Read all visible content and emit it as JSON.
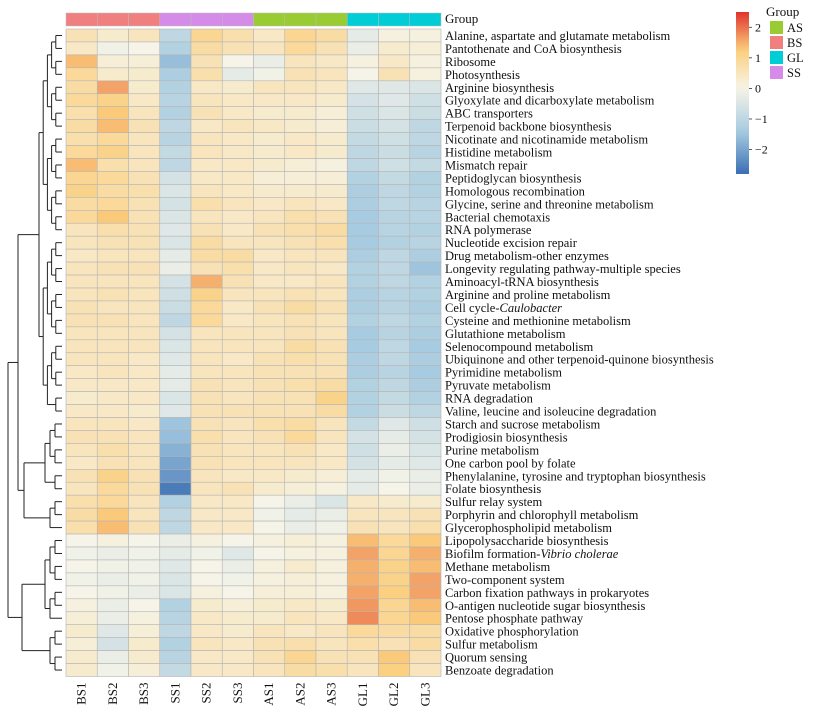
{
  "chart_data": {
    "type": "heatmap",
    "title": "",
    "annotation_label": "Group",
    "columns": [
      "BS1",
      "BS2",
      "BS3",
      "SS1",
      "SS2",
      "SS3",
      "AS1",
      "AS2",
      "AS3",
      "GL1",
      "GL2",
      "GL3"
    ],
    "column_groups": [
      "BS",
      "BS",
      "BS",
      "SS",
      "SS",
      "SS",
      "AS",
      "AS",
      "AS",
      "GL",
      "GL",
      "GL"
    ],
    "group_legend": {
      "title": "Group",
      "entries": [
        {
          "name": "AS",
          "color": "#99cc33"
        },
        {
          "name": "BS",
          "color": "#f08080"
        },
        {
          "name": "GL",
          "color": "#00cdd6"
        },
        {
          "name": "SS",
          "color": "#d58ce8"
        }
      ]
    },
    "colorbar": {
      "range": [
        -2.8,
        2.5
      ],
      "ticks": [
        2,
        1,
        0,
        -1,
        -2
      ],
      "tick_labels": [
        "2",
        "1",
        "0",
        "−1",
        "−2"
      ],
      "colors": [
        "#3a6fb3",
        "#f6f4e8",
        "#e0332d"
      ]
    },
    "rows": [
      {
        "name": "Alanine, aspartate and glutamate metabolism",
        "values": [
          0.6,
          0.3,
          0.5,
          -1.0,
          1.0,
          0.7,
          0.4,
          1.0,
          0.8,
          -0.3,
          0.1,
          0.1
        ]
      },
      {
        "name": "Pantothenate and CoA biosynthesis",
        "values": [
          0.4,
          -0.1,
          0.0,
          -1.2,
          0.8,
          0.6,
          0.5,
          0.9,
          0.6,
          -0.2,
          0.3,
          0.2
        ]
      },
      {
        "name": "Ribosome",
        "values": [
          1.4,
          0.2,
          0.2,
          -1.6,
          0.6,
          0.0,
          -0.2,
          0.5,
          0.4,
          0.1,
          0.4,
          0.1
        ]
      },
      {
        "name": "Photosynthesis",
        "values": [
          0.9,
          0.3,
          0.3,
          -1.3,
          0.7,
          -0.3,
          -0.1,
          0.6,
          0.5,
          0.0,
          0.6,
          0.1
        ]
      },
      {
        "name": "Arginine biosynthesis",
        "values": [
          0.8,
          1.6,
          0.3,
          -1.2,
          0.4,
          0.3,
          0.5,
          0.5,
          0.4,
          -0.4,
          -0.4,
          -0.5
        ]
      },
      {
        "name": "Glyoxylate and dicarboxylate metabolism",
        "values": [
          0.9,
          1.1,
          0.4,
          -1.1,
          0.5,
          0.4,
          0.4,
          0.4,
          0.3,
          -0.6,
          -0.4,
          -0.7
        ]
      },
      {
        "name": "ABC transporters",
        "values": [
          0.7,
          1.3,
          0.5,
          -1.2,
          0.6,
          0.4,
          0.3,
          0.3,
          0.2,
          -0.7,
          -0.5,
          -0.8
        ]
      },
      {
        "name": "Terpenoid backbone biosynthesis",
        "values": [
          0.8,
          1.4,
          0.6,
          -1.0,
          0.4,
          0.5,
          0.4,
          0.3,
          0.2,
          -0.8,
          -0.6,
          -1.0
        ]
      },
      {
        "name": "Nicotinate and nicotinamide metabolism",
        "values": [
          0.7,
          0.9,
          0.5,
          -1.1,
          0.5,
          0.4,
          0.3,
          0.4,
          0.3,
          -0.9,
          -0.7,
          -1.0
        ]
      },
      {
        "name": "Histidine metabolism",
        "values": [
          0.9,
          1.1,
          0.5,
          -0.9,
          0.5,
          0.4,
          0.3,
          0.4,
          0.3,
          -1.0,
          -0.8,
          -1.1
        ]
      },
      {
        "name": "Mismatch repair",
        "values": [
          1.4,
          0.7,
          0.5,
          -1.0,
          0.4,
          0.4,
          0.3,
          0.2,
          0.1,
          -1.0,
          -0.7,
          -0.9
        ]
      },
      {
        "name": "Peptidoglycan biosynthesis",
        "values": [
          1.0,
          0.9,
          0.6,
          -0.6,
          0.4,
          0.4,
          0.2,
          0.2,
          0.2,
          -1.2,
          -0.9,
          -1.2
        ]
      },
      {
        "name": "Homologous recombination",
        "values": [
          1.1,
          0.8,
          0.7,
          -0.5,
          0.5,
          0.4,
          0.3,
          0.3,
          0.3,
          -1.3,
          -1.0,
          -1.2
        ]
      },
      {
        "name": "Glycine, serine and threonine metabolism",
        "values": [
          0.8,
          0.9,
          0.6,
          -0.6,
          0.7,
          0.5,
          0.4,
          0.5,
          0.4,
          -1.3,
          -1.0,
          -1.1
        ]
      },
      {
        "name": "Bacterial chemotaxis",
        "values": [
          0.9,
          1.3,
          0.6,
          -0.5,
          0.5,
          0.4,
          0.5,
          0.7,
          0.6,
          -1.4,
          -1.1,
          -1.1
        ]
      },
      {
        "name": "RNA polymerase",
        "values": [
          0.5,
          0.7,
          0.6,
          -0.4,
          0.6,
          0.4,
          0.6,
          0.7,
          0.8,
          -1.4,
          -1.1,
          -1.2
        ]
      },
      {
        "name": "Nucleotide excision repair",
        "values": [
          0.5,
          0.6,
          0.6,
          -0.5,
          0.8,
          0.5,
          0.5,
          0.6,
          0.7,
          -1.4,
          -1.2,
          -1.1
        ]
      },
      {
        "name": "Drug metabolism-other enzymes",
        "values": [
          0.4,
          0.5,
          0.5,
          -0.3,
          0.8,
          0.8,
          0.4,
          0.5,
          0.5,
          -1.3,
          -1.0,
          -1.3
        ]
      },
      {
        "name": "Longevity regulating pathway-multiple species",
        "values": [
          0.5,
          0.6,
          0.6,
          -0.2,
          0.6,
          0.7,
          0.4,
          0.5,
          0.4,
          -1.2,
          -1.0,
          -1.5
        ]
      },
      {
        "name": "Aminoacyl-tRNA biosynthesis",
        "values": [
          0.5,
          0.5,
          0.5,
          -0.6,
          1.5,
          0.6,
          0.4,
          0.4,
          0.5,
          -1.2,
          -1.0,
          -1.2
        ]
      },
      {
        "name": "Arginine and proline metabolism",
        "values": [
          0.5,
          0.6,
          0.5,
          -0.7,
          1.1,
          0.5,
          0.5,
          0.6,
          0.5,
          -1.3,
          -1.1,
          -1.2
        ]
      },
      {
        "name": "Cell cycle-Caulobacter",
        "values": [
          0.6,
          0.5,
          0.5,
          -0.8,
          0.9,
          0.4,
          0.6,
          0.8,
          0.6,
          -1.3,
          -1.1,
          -1.3
        ]
      },
      {
        "name": "Cysteine and methionine metabolism",
        "values": [
          0.6,
          0.6,
          0.5,
          -1.0,
          0.9,
          0.4,
          0.5,
          0.6,
          0.5,
          -1.2,
          -1.0,
          -1.2
        ]
      },
      {
        "name": "Glutathione metabolism",
        "values": [
          0.5,
          0.5,
          0.5,
          -0.6,
          0.5,
          0.5,
          0.5,
          0.6,
          0.5,
          -1.4,
          -1.1,
          -1.3
        ]
      },
      {
        "name": "Selenocompound metabolism",
        "values": [
          0.5,
          0.5,
          0.5,
          -0.5,
          0.5,
          0.5,
          0.5,
          0.8,
          0.6,
          -1.4,
          -1.0,
          -1.4
        ]
      },
      {
        "name": "Ubiquinone and other terpenoid-quinone biosynthesis",
        "values": [
          0.5,
          0.5,
          0.4,
          -0.4,
          0.5,
          0.4,
          0.6,
          0.7,
          0.6,
          -1.3,
          -1.0,
          -1.3
        ]
      },
      {
        "name": "Pyrimidine metabolism",
        "values": [
          0.4,
          0.5,
          0.4,
          -0.3,
          0.5,
          0.5,
          0.6,
          0.6,
          0.6,
          -1.3,
          -1.1,
          -1.4
        ]
      },
      {
        "name": "Pyruvate metabolism",
        "values": [
          0.4,
          0.4,
          0.4,
          -0.3,
          0.6,
          0.5,
          0.6,
          0.7,
          0.8,
          -1.2,
          -1.0,
          -1.3
        ]
      },
      {
        "name": "RNA degradation",
        "values": [
          0.3,
          0.4,
          0.4,
          -0.5,
          0.6,
          0.5,
          0.6,
          0.6,
          1.1,
          -1.2,
          -0.9,
          -1.2
        ]
      },
      {
        "name": "Valine, leucine and isoleucine degradation",
        "values": [
          0.4,
          0.4,
          0.3,
          -0.4,
          0.6,
          0.6,
          0.6,
          0.6,
          0.8,
          -1.2,
          -0.8,
          -1.0
        ]
      },
      {
        "name": "Starch and sucrose metabolism",
        "values": [
          0.5,
          0.5,
          0.4,
          -1.5,
          0.6,
          0.5,
          0.7,
          0.8,
          0.5,
          -0.9,
          -0.4,
          -0.7
        ]
      },
      {
        "name": "Prodigiosin biosynthesis",
        "values": [
          0.6,
          0.6,
          0.5,
          -1.6,
          0.7,
          0.5,
          0.6,
          0.9,
          0.5,
          -0.6,
          -0.3,
          -0.6
        ]
      },
      {
        "name": "Purine metabolism",
        "values": [
          0.5,
          0.7,
          0.5,
          -1.8,
          0.6,
          0.5,
          0.5,
          0.6,
          0.4,
          -0.7,
          -0.2,
          -0.5
        ]
      },
      {
        "name": "One carbon pool by folate",
        "values": [
          0.4,
          0.6,
          0.5,
          -2.0,
          0.6,
          0.5,
          0.5,
          0.5,
          0.4,
          -0.6,
          -0.3,
          -0.4
        ]
      },
      {
        "name": "Phenylalanine, tyrosine and tryptophan biosynthesis",
        "values": [
          0.6,
          1.1,
          0.6,
          -2.2,
          0.5,
          0.4,
          0.4,
          0.3,
          0.2,
          -0.3,
          -0.1,
          -0.2
        ]
      },
      {
        "name": "Folate biosynthesis",
        "values": [
          0.5,
          0.9,
          0.6,
          -2.6,
          0.5,
          0.6,
          0.3,
          0.2,
          0.1,
          -0.3,
          0.0,
          -0.2
        ]
      },
      {
        "name": "Sulfur relay system",
        "values": [
          0.7,
          0.9,
          0.5,
          -1.2,
          0.4,
          0.4,
          0.0,
          -0.2,
          -0.5,
          0.4,
          0.3,
          0.3
        ]
      },
      {
        "name": "Porphyrin and chlorophyll metabolism",
        "values": [
          0.8,
          1.3,
          0.5,
          -1.0,
          0.4,
          0.4,
          -0.1,
          -0.3,
          -0.2,
          0.5,
          0.5,
          0.6
        ]
      },
      {
        "name": "Glycerophospholipid metabolism",
        "values": [
          0.7,
          1.4,
          0.6,
          -1.0,
          0.4,
          0.4,
          0.0,
          -0.2,
          -0.1,
          0.6,
          0.5,
          0.7
        ]
      },
      {
        "name": "Lipopolysaccharide biosynthesis",
        "values": [
          0.0,
          0.1,
          0.0,
          -0.2,
          0.1,
          0.0,
          0.1,
          0.2,
          0.1,
          1.4,
          0.9,
          1.3
        ]
      },
      {
        "name": "Biofilm formation-Vibrio cholerae",
        "values": [
          -0.1,
          -0.2,
          -0.1,
          -0.3,
          -0.1,
          -0.4,
          0.0,
          0.1,
          0.1,
          1.6,
          1.0,
          1.5
        ]
      },
      {
        "name": "Methane metabolism",
        "values": [
          0.0,
          -0.1,
          -0.1,
          -0.4,
          0.0,
          -0.2,
          0.1,
          0.3,
          0.1,
          1.5,
          1.1,
          1.4
        ]
      },
      {
        "name": "Two-component system",
        "values": [
          -0.1,
          -0.2,
          -0.1,
          -0.5,
          0.0,
          -0.1,
          0.1,
          0.2,
          0.1,
          1.5,
          1.1,
          1.6
        ]
      },
      {
        "name": "Carbon fixation pathways in prokaryotes",
        "values": [
          0.0,
          -0.1,
          -0.2,
          -0.5,
          0.1,
          0.0,
          0.2,
          0.2,
          0.1,
          1.6,
          1.2,
          1.6
        ]
      },
      {
        "name": "O-antigen nucleotide sugar biosynthesis",
        "values": [
          0.1,
          -0.2,
          0.0,
          -1.2,
          0.3,
          0.2,
          0.3,
          0.4,
          0.3,
          1.7,
          1.0,
          1.4
        ]
      },
      {
        "name": "Pentose phosphate pathway",
        "values": [
          0.2,
          -0.2,
          0.1,
          -1.1,
          0.4,
          0.3,
          0.3,
          0.5,
          0.4,
          1.8,
          1.0,
          1.3
        ]
      },
      {
        "name": "Oxidative phosphorylation",
        "values": [
          0.3,
          -0.4,
          0.2,
          -1.0,
          0.4,
          0.3,
          0.5,
          0.4,
          0.5,
          0.9,
          0.8,
          0.8
        ]
      },
      {
        "name": "Sulfur metabolism",
        "values": [
          0.2,
          -0.6,
          0.3,
          -1.2,
          0.5,
          0.4,
          0.6,
          0.7,
          0.5,
          0.7,
          0.6,
          0.8
        ]
      },
      {
        "name": "Quorum sensing",
        "values": [
          0.3,
          -0.2,
          0.3,
          -1.1,
          0.4,
          0.4,
          0.6,
          1.0,
          0.6,
          0.6,
          1.3,
          0.6
        ]
      },
      {
        "name": "Benzoate degradation",
        "values": [
          0.3,
          -0.1,
          0.2,
          -0.9,
          0.4,
          0.4,
          0.5,
          0.8,
          0.7,
          0.5,
          1.2,
          0.5
        ]
      }
    ],
    "italic_segments": {
      "Cell cycle-Caulobacter": {
        "plain": "Cell cycle-",
        "italic": "Caulobacter"
      },
      "Biofilm formation-Vibrio cholerae": {
        "plain": "Biofilm formation-",
        "italic": "Vibrio cholerae"
      }
    },
    "row_dendrogram": {
      "clusters": [
        {
          "members": [
            0,
            29
          ]
        },
        {
          "members": [
            30,
            35
          ]
        },
        {
          "members": [
            36,
            38
          ]
        },
        {
          "members": [
            39,
            45
          ]
        },
        {
          "members": [
            46,
            49
          ]
        }
      ]
    },
    "grid": true
  }
}
